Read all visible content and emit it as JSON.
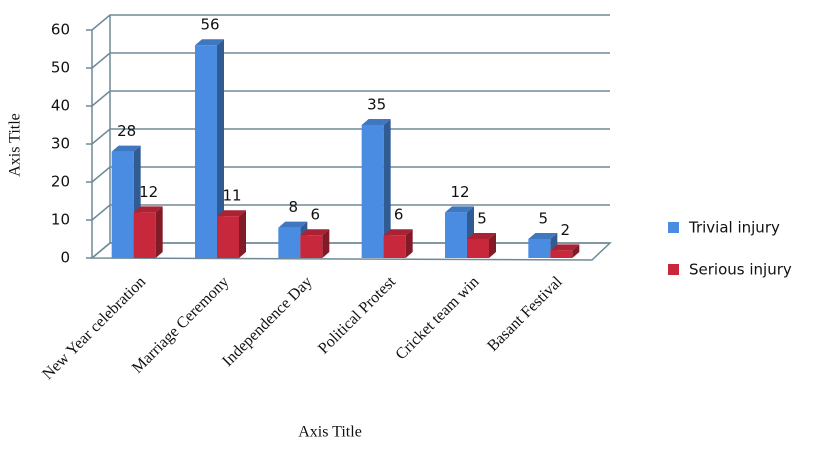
{
  "chart_data": {
    "type": "bar3d",
    "categories": [
      "New Year celebration",
      "Marriage Ceremony",
      "Independence Day",
      "Political Protest",
      "Cricket team win",
      "Basant Festival"
    ],
    "series": [
      {
        "name": "Trivial injury",
        "color": "#4a8ce2",
        "values": [
          28,
          56,
          8,
          35,
          12,
          5
        ]
      },
      {
        "name": "Serious injury",
        "color": "#c8283c",
        "values": [
          12,
          11,
          6,
          6,
          5,
          2
        ]
      }
    ],
    "ylim": [
      0,
      60
    ],
    "yticks": [
      0,
      10,
      20,
      30,
      40,
      50,
      60
    ],
    "grid": true,
    "x_label": "Axis Title",
    "y_label": "Axis Title",
    "legend": "right"
  }
}
